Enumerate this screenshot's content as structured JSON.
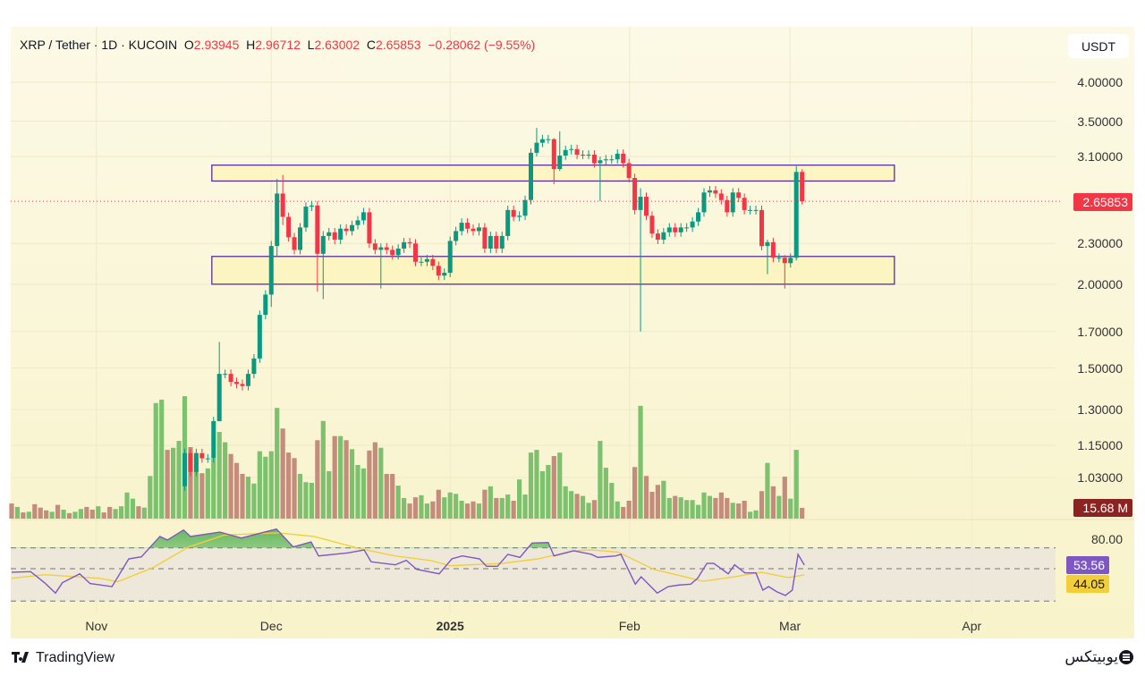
{
  "header": {
    "symbol": "XRP / Tether · 1D · KUCOIN",
    "o_label": "O",
    "o": "2.93945",
    "h_label": "H",
    "h": "2.96712",
    "l_label": "L",
    "l": "2.63002",
    "c_label": "C",
    "c": "2.65853",
    "change": "−0.28062 (−9.55%)"
  },
  "currency_button": "USDT",
  "price_axis": [
    "4.00000",
    "3.50000",
    "3.10000",
    "2.30000",
    "2.00000",
    "1.70000",
    "1.50000",
    "1.30000",
    "1.15000",
    "1.03000"
  ],
  "last_price_badge": "2.65853",
  "volume_badge": "15.68 M",
  "rsi_axis_label": "80.00",
  "rsi_badge": "53.56",
  "rsi_ma_badge": "44.05",
  "footer": {
    "brand": "TradingView",
    "watermark": "یوبیتکس"
  },
  "colors": {
    "up": "#089981",
    "down": "#f23645",
    "vol_up": "#7cc26e",
    "vol_down": "#c38c7b",
    "box": "#5b2d9e",
    "rsi": "#7e57c2",
    "rsi_ma": "#f2cf3a"
  },
  "chart_data": {
    "type": "candlestick",
    "title": "XRP / Tether · 1D · KUCOIN",
    "scale": "log",
    "ylim": [
      1.0,
      4.2
    ],
    "x_ticks": [
      {
        "label": "Nov",
        "index": 14.7
      },
      {
        "label": "Dec",
        "index": 45.0
      },
      {
        "label": "2025",
        "index": 76.0
      },
      {
        "label": "Feb",
        "index": 107.1
      },
      {
        "label": "Mar",
        "index": 134.9
      },
      {
        "label": "Apr",
        "index": 166.4
      }
    ],
    "candle_start_index": 30,
    "first_open": 1.0,
    "closes": [
      1.12,
      1.05,
      1.12,
      1.1,
      1.1,
      1.25,
      1.47,
      1.47,
      1.43,
      1.42,
      1.41,
      1.47,
      1.55,
      1.8,
      1.93,
      2.28,
      2.73,
      2.52,
      2.35,
      2.25,
      2.43,
      2.61,
      2.62,
      2.22,
      2.36,
      2.39,
      2.33,
      2.42,
      2.4,
      2.45,
      2.49,
      2.56,
      2.3,
      2.25,
      2.27,
      2.25,
      2.21,
      2.26,
      2.31,
      2.3,
      2.16,
      2.16,
      2.18,
      2.13,
      2.06,
      2.08,
      2.32,
      2.4,
      2.47,
      2.42,
      2.4,
      2.43,
      2.26,
      2.36,
      2.26,
      2.36,
      2.58,
      2.52,
      2.53,
      2.67,
      3.14,
      3.25,
      3.29,
      3.29,
      2.97,
      3.11,
      3.17,
      3.18,
      3.12,
      3.12,
      3.12,
      3.03,
      3.06,
      3.07,
      3.07,
      3.13,
      3.03,
      2.88,
      2.58,
      2.7,
      2.53,
      2.38,
      2.33,
      2.39,
      2.43,
      2.39,
      2.43,
      2.43,
      2.48,
      2.56,
      2.74,
      2.76,
      2.73,
      2.67,
      2.56,
      2.74,
      2.69,
      2.58,
      2.58,
      2.58,
      2.28,
      2.31,
      2.19,
      2.19,
      2.15,
      2.19,
      2.94,
      2.65853
    ],
    "wick_overrides": {
      "6": [
        1.64,
        1.4
      ],
      "15": [
        2.32,
        1.85
      ],
      "16": [
        2.87,
        2.2
      ],
      "17": [
        2.91,
        2.45
      ],
      "23": [
        2.66,
        1.95
      ],
      "24": [
        2.4,
        1.9
      ],
      "34": [
        2.3,
        1.97
      ],
      "61": [
        3.42,
        3.1
      ],
      "64": [
        3.3,
        2.82
      ],
      "65": [
        3.38,
        2.95
      ],
      "72": [
        3.1,
        2.66
      ],
      "79": [
        2.78,
        1.7
      ],
      "101": [
        2.33,
        2.07
      ],
      "104": [
        2.21,
        1.97
      ],
      "106": [
        3.0,
        2.17
      ],
      "107": [
        2.96712,
        2.63002
      ]
    },
    "volume_m": [
      22,
      17,
      9,
      10,
      21,
      16,
      12,
      10,
      20,
      13,
      8,
      10,
      14,
      17,
      13,
      18,
      9,
      17,
      14,
      18,
      38,
      29,
      18,
      16,
      62,
      168,
      173,
      100,
      103,
      113,
      178,
      104,
      69,
      66,
      73,
      87,
      126,
      111,
      94,
      81,
      65,
      61,
      51,
      98,
      90,
      98,
      161,
      131,
      96,
      88,
      65,
      53,
      52,
      114,
      142,
      69,
      120,
      120,
      114,
      101,
      78,
      73,
      99,
      111,
      103,
      65,
      65,
      48,
      30,
      22,
      31,
      34,
      22,
      25,
      42,
      31,
      38,
      36,
      26,
      22,
      25,
      22,
      42,
      47,
      30,
      30,
      35,
      26,
      57,
      35,
      96,
      100,
      69,
      78,
      91,
      96,
      47,
      40,
      36,
      33,
      23,
      27,
      113,
      74,
      52,
      25,
      17,
      26,
      75,
      164,
      62,
      39,
      49,
      55,
      30,
      33,
      31,
      27,
      27,
      20,
      38,
      33,
      30,
      38,
      30,
      23,
      22,
      26,
      10,
      12,
      40,
      81,
      47,
      33,
      61,
      29,
      100,
      15.68
    ],
    "volume_dirs_pre": "dgdgdddgdgdggddgddggggdggggdgg",
    "zones": [
      {
        "top": 3.01,
        "bottom": 2.85,
        "from_index": 34.7,
        "to_index": 153
      },
      {
        "top": 2.2,
        "bottom": 2.0,
        "from_index": 34.7,
        "to_index": 153
      }
    ],
    "rsi_levels": [
      70,
      50,
      19
    ],
    "rsi": [
      [
        0,
        46.6
      ],
      [
        3.3,
        47.2
      ],
      [
        5.7,
        36.6
      ],
      [
        7.6,
        26.7
      ],
      [
        8.8,
        36.6
      ],
      [
        11.8,
        45.1
      ],
      [
        13.6,
        35.8
      ],
      [
        17.4,
        32.9
      ],
      [
        20.3,
        59.4
      ],
      [
        22.5,
        61.4
      ],
      [
        25.7,
        80.8
      ],
      [
        27,
        77.4
      ],
      [
        29.8,
        87
      ],
      [
        31,
        80.8
      ],
      [
        36.1,
        85
      ],
      [
        39.8,
        79.3
      ],
      [
        45.9,
        87.9
      ],
      [
        48.8,
        70.8
      ],
      [
        51.9,
        75.6
      ],
      [
        53.2,
        62.2
      ],
      [
        58.3,
        65.1
      ],
      [
        61.1,
        67.9
      ],
      [
        62.3,
        56.6
      ],
      [
        66.5,
        53.7
      ],
      [
        68.4,
        58
      ],
      [
        70.2,
        49.4
      ],
      [
        74.1,
        45.1
      ],
      [
        76.3,
        59.4
      ],
      [
        78.1,
        62.2
      ],
      [
        81.1,
        59.4
      ],
      [
        82.3,
        52.3
      ],
      [
        84.2,
        52.3
      ],
      [
        86,
        63.7
      ],
      [
        88.1,
        60.8
      ],
      [
        90.2,
        74.5
      ],
      [
        93,
        75
      ],
      [
        94,
        62.2
      ],
      [
        97.4,
        67.1
      ],
      [
        100.5,
        63.7
      ],
      [
        101.6,
        60.8
      ],
      [
        104.7,
        62.2
      ],
      [
        105.6,
        63.7
      ],
      [
        108.1,
        35.2
      ],
      [
        109.1,
        42.3
      ],
      [
        111.9,
        26.7
      ],
      [
        113.8,
        32.9
      ],
      [
        115.7,
        34.4
      ],
      [
        117.7,
        35.2
      ],
      [
        118.9,
        40.9
      ],
      [
        120.5,
        55.1
      ],
      [
        121.7,
        55.1
      ],
      [
        124.2,
        45.1
      ],
      [
        125.3,
        53.7
      ],
      [
        127.1,
        46
      ],
      [
        129,
        46
      ],
      [
        130.2,
        29.5
      ],
      [
        131.2,
        32.9
      ],
      [
        132.6,
        28
      ],
      [
        134.1,
        24.4
      ],
      [
        135.3,
        29.5
      ],
      [
        136.3,
        63.7
      ],
      [
        137.4,
        53.56
      ]
    ],
    "rsi_ma": [
      [
        0,
        40.9
      ],
      [
        5.7,
        44.3
      ],
      [
        15.2,
        40.9
      ],
      [
        18.4,
        37.6
      ],
      [
        24.5,
        51
      ],
      [
        30.7,
        70.8
      ],
      [
        36.9,
        82.2
      ],
      [
        46.2,
        84.2
      ],
      [
        52.4,
        80.8
      ],
      [
        60.2,
        69.4
      ],
      [
        66.4,
        62.2
      ],
      [
        72.6,
        57.9
      ],
      [
        76,
        52.8
      ],
      [
        85,
        55.1
      ],
      [
        91.2,
        59.4
      ],
      [
        97.4,
        67.1
      ],
      [
        100.5,
        67.9
      ],
      [
        105.1,
        65.9
      ],
      [
        111.3,
        49.4
      ],
      [
        119.8,
        38
      ],
      [
        125.3,
        42.3
      ],
      [
        129.9,
        46.6
      ],
      [
        134.6,
        41.5
      ],
      [
        137.4,
        44.05
      ]
    ],
    "last_price": 2.65853
  }
}
